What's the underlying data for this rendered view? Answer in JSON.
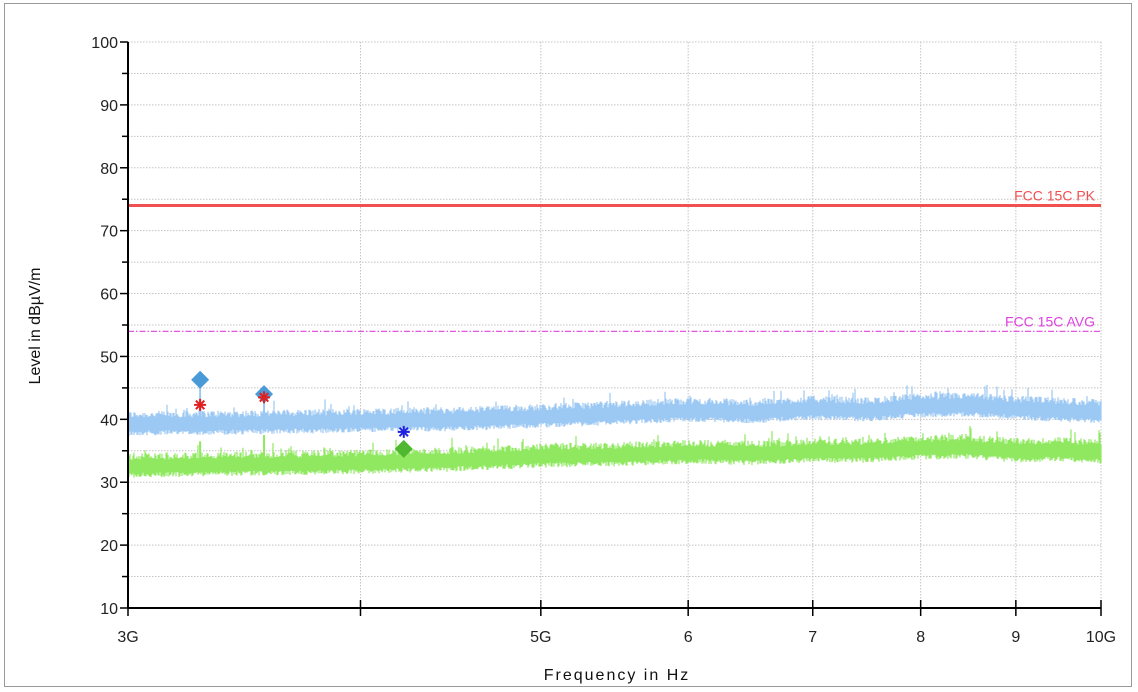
{
  "chart_data": {
    "type": "line",
    "xlabel": "Frequency in Hz",
    "ylabel": "Level in dBµV/m",
    "x_scale": "log",
    "xlim": [
      3000000000,
      10000000000
    ],
    "ylim": [
      10,
      100
    ],
    "grid": true,
    "x_ticks": [
      {
        "value": 3000000000,
        "label": "3G"
      },
      {
        "value": 4000000000,
        "label": ""
      },
      {
        "value": 5000000000,
        "label": "5G"
      },
      {
        "value": 6000000000,
        "label": "6"
      },
      {
        "value": 7000000000,
        "label": "7"
      },
      {
        "value": 8000000000,
        "label": "8"
      },
      {
        "value": 9000000000,
        "label": "9"
      },
      {
        "value": 10000000000,
        "label": "10G"
      }
    ],
    "y_ticks": [
      {
        "value": 10,
        "label": "10"
      },
      {
        "value": 20,
        "label": "20"
      },
      {
        "value": 30,
        "label": "30"
      },
      {
        "value": 40,
        "label": "40"
      },
      {
        "value": 50,
        "label": "50"
      },
      {
        "value": 60,
        "label": "60"
      },
      {
        "value": 70,
        "label": "70"
      },
      {
        "value": 80,
        "label": "80"
      },
      {
        "value": 90,
        "label": "90"
      },
      {
        "value": 100,
        "label": "100"
      }
    ],
    "limits": [
      {
        "label": "FCC 15C PK",
        "value": 74,
        "color": "#f05050",
        "style": "solid"
      },
      {
        "label": "FCC 15C AVG",
        "value": 54,
        "color": "#e040e0",
        "style": "dashdot"
      }
    ],
    "series": [
      {
        "color": "#9cc8f4",
        "x": [
          3000000000,
          3500000000,
          4000000000,
          4500000000,
          5000000000,
          5500000000,
          6000000000,
          6500000000,
          7000000000,
          7500000000,
          8000000000,
          8500000000,
          9000000000,
          9500000000,
          10000000000
        ],
        "values": [
          39.3,
          39.5,
          39.8,
          40.0,
          40.5,
          41.0,
          41.5,
          41.2,
          41.8,
          41.5,
          42.2,
          42.3,
          41.8,
          41.5,
          41.2
        ]
      },
      {
        "color": "#90e860",
        "x": [
          3000000000,
          3500000000,
          4000000000,
          4500000000,
          5000000000,
          5500000000,
          6000000000,
          6500000000,
          7000000000,
          7500000000,
          8000000000,
          8500000000,
          9000000000,
          9500000000,
          10000000000
        ],
        "values": [
          32.6,
          32.9,
          33.2,
          33.6,
          34.2,
          34.4,
          34.8,
          34.6,
          35.0,
          35.0,
          35.5,
          35.6,
          35.0,
          35.2,
          34.8
        ]
      }
    ],
    "markers": [
      {
        "x": 3280000000,
        "y": 46.3,
        "shape": "diamond",
        "color": "#4a9ad8"
      },
      {
        "x": 3280000000,
        "y": 42.3,
        "shape": "asterisk",
        "color": "#e02020"
      },
      {
        "x": 3550000000,
        "y": 44.0,
        "shape": "diamond",
        "color": "#4a9ad8"
      },
      {
        "x": 3550000000,
        "y": 43.5,
        "shape": "asterisk",
        "color": "#e02020"
      },
      {
        "x": 4220000000,
        "y": 38.0,
        "shape": "asterisk",
        "color": "#2020e0"
      },
      {
        "x": 4220000000,
        "y": 35.3,
        "shape": "diamond",
        "color": "#50b830"
      }
    ]
  }
}
